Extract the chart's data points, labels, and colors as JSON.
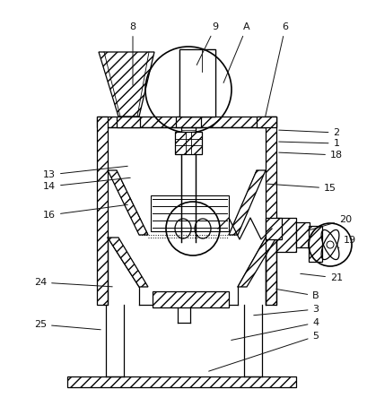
{
  "bg_color": "#ffffff",
  "line_color": "#000000",
  "labels_data": [
    [
      "8",
      148,
      98,
      148,
      30
    ],
    [
      "9",
      218,
      75,
      240,
      30
    ],
    [
      "A",
      248,
      95,
      275,
      30
    ],
    [
      "6",
      295,
      133,
      318,
      30
    ],
    [
      "2",
      308,
      145,
      375,
      148
    ],
    [
      "1",
      308,
      158,
      375,
      160
    ],
    [
      "18",
      308,
      170,
      375,
      173
    ],
    [
      "15",
      295,
      205,
      368,
      210
    ],
    [
      "13",
      145,
      185,
      55,
      195
    ],
    [
      "14",
      148,
      198,
      55,
      208
    ],
    [
      "16",
      145,
      228,
      55,
      240
    ],
    [
      "20",
      340,
      258,
      385,
      245
    ],
    [
      "19",
      375,
      278,
      390,
      268
    ],
    [
      "21",
      332,
      305,
      375,
      310
    ],
    [
      "B",
      305,
      322,
      352,
      330
    ],
    [
      "24",
      128,
      320,
      45,
      315
    ],
    [
      "25",
      115,
      368,
      45,
      362
    ],
    [
      "3",
      280,
      352,
      352,
      345
    ],
    [
      "4",
      255,
      380,
      352,
      360
    ],
    [
      "5",
      230,
      415,
      352,
      375
    ]
  ]
}
